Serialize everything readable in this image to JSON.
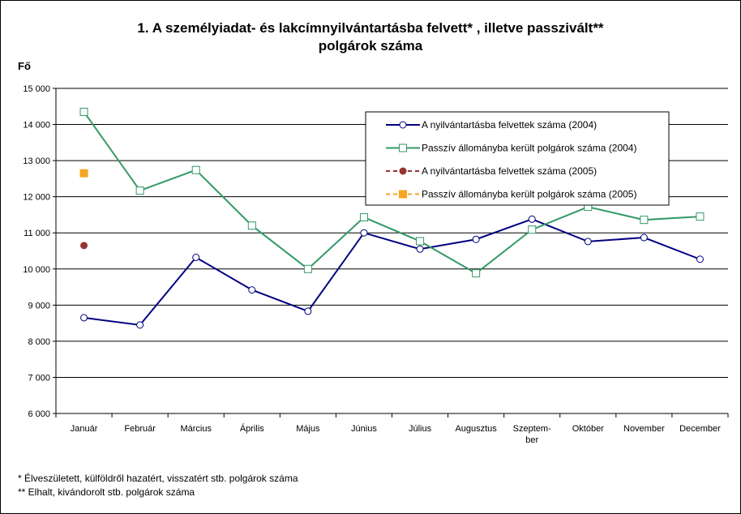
{
  "chart_data": {
    "type": "line",
    "title_line1": "1. A személyiadat- és lakcímnyilvántartásba felvett* , illetve passzivált**",
    "title_line2": "polgárok száma",
    "ylabel": "Fő",
    "xlabel": "",
    "categories": [
      [
        "Január"
      ],
      [
        "Február"
      ],
      [
        "Március"
      ],
      [
        "Április"
      ],
      [
        "Május"
      ],
      [
        "Június"
      ],
      [
        "Július"
      ],
      [
        "Augusztus"
      ],
      [
        "Szeptem-",
        "ber"
      ],
      [
        "Október"
      ],
      [
        "November"
      ],
      [
        "December"
      ]
    ],
    "yticks": [
      "6 000",
      "7 000",
      "8 000",
      "9 000",
      "10 000",
      "11 000",
      "12 000",
      "13 000",
      "14 000",
      "15 000"
    ],
    "ylim": [
      6000,
      15000
    ],
    "grid": true,
    "legend_position": "top-right",
    "series": [
      {
        "name": "A nyilvántartásba felvettek száma (2004)",
        "color": "#000080",
        "marker": "circle",
        "values": [
          8650,
          8450,
          10320,
          9420,
          8830,
          11000,
          10550,
          10820,
          11380,
          10760,
          10870,
          10270
        ]
      },
      {
        "name": "Passzív állományba került polgárok száma (2004)",
        "color": "#339966",
        "marker": "square",
        "values": [
          14350,
          12170,
          12740,
          11200,
          10000,
          11430,
          10770,
          9880,
          11090,
          11720,
          11360,
          11450
        ]
      },
      {
        "name": "A nyilvántartásba felvettek száma (2005)",
        "color": "#993333",
        "marker": "filled-circle",
        "dashed": true,
        "values": [
          10650,
          null,
          null,
          null,
          null,
          null,
          null,
          null,
          null,
          null,
          null,
          null
        ]
      },
      {
        "name": "Passzív állományba került polgárok száma (2005)",
        "color": "#f5a623",
        "marker": "filled-square",
        "dashed": true,
        "values": [
          12650,
          null,
          null,
          null,
          null,
          null,
          null,
          null,
          null,
          null,
          null,
          null
        ]
      }
    ]
  },
  "footnotes": {
    "line1": "* Élveszületett, külföldről hazatért, visszatért stb. polgárok száma",
    "line2": "** Elhalt, kivándorolt stb. polgárok száma"
  }
}
